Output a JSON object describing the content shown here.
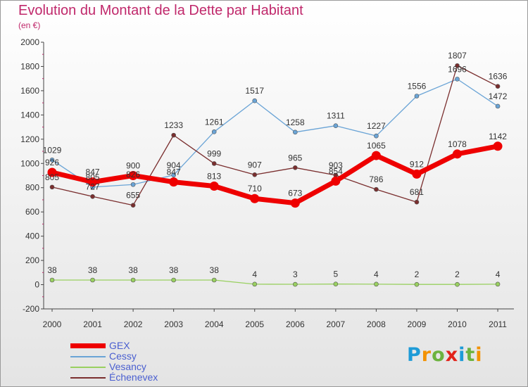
{
  "chart_data": {
    "type": "line",
    "title": "Evolution du Montant de la Dette par Habitant",
    "subtitle": "(en €)",
    "xlabel": "",
    "ylabel": "",
    "x": [
      "2000",
      "2001",
      "2002",
      "2003",
      "2004",
      "2005",
      "2006",
      "2007",
      "2008",
      "2009",
      "2010",
      "2011"
    ],
    "ylim": [
      -200,
      2000
    ],
    "yticks": [
      "-200",
      "0",
      "200",
      "400",
      "600",
      "800",
      "1000",
      "1200",
      "1400",
      "1600",
      "1800",
      "2000"
    ],
    "grid": false,
    "legend_position": "bottom-left",
    "series": [
      {
        "name": "GEX",
        "color": "#ee0000",
        "values": [
          926,
          847,
          900,
          847,
          813,
          710,
          673,
          854,
          1065,
          912,
          1078,
          1142
        ],
        "labels": [
          "926",
          "847",
          "900",
          "847",
          "813",
          "710",
          "673",
          "854",
          "1065",
          "912",
          "1078",
          "1142"
        ]
      },
      {
        "name": "Cessy",
        "color": "#6aa4d6",
        "values": [
          1029,
          805,
          826,
          904,
          1261,
          1517,
          1258,
          1311,
          1227,
          1556,
          1696,
          1472
        ],
        "labels": [
          "1029",
          "805",
          "826",
          "904",
          "1261",
          "1517",
          "1258",
          "1311",
          "1227",
          "1556",
          "1696",
          "1472"
        ]
      },
      {
        "name": "Vesancy",
        "color": "#99d060",
        "values": [
          38,
          38,
          38,
          38,
          38,
          4,
          3,
          5,
          4,
          2,
          2,
          4
        ],
        "labels": [
          "38",
          "38",
          "38",
          "38",
          "38",
          "4",
          "3",
          "5",
          "4",
          "2",
          "2",
          "4"
        ]
      },
      {
        "name": "Échenevex",
        "color": "#7a2e2e",
        "values": [
          805,
          727,
          655,
          1233,
          999,
          907,
          965,
          903,
          786,
          681,
          1807,
          1636
        ],
        "labels": [
          "805",
          "727",
          "655",
          "1233",
          "999",
          "907",
          "965",
          "903",
          "786",
          "681",
          "1807",
          "1636"
        ]
      }
    ]
  },
  "logo": {
    "letters": [
      "P",
      "r",
      "o",
      "x",
      "i",
      "t",
      "i"
    ],
    "colors": [
      "#1e9bd7",
      "#f39200",
      "#6cb33f",
      "#e2231a",
      "#1e9bd7",
      "#6cb33f",
      "#f39200"
    ]
  }
}
